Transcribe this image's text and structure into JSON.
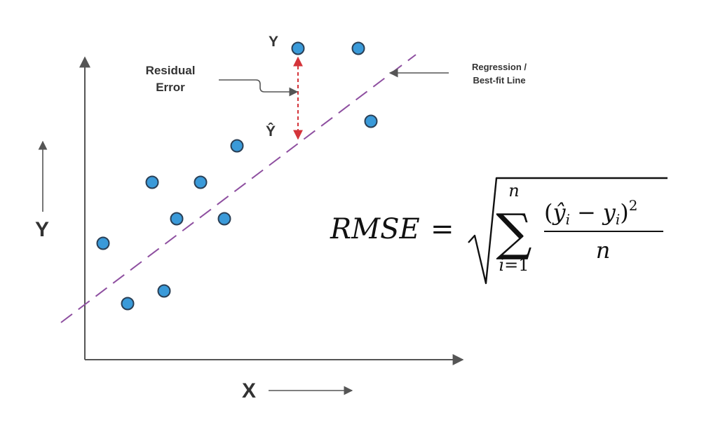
{
  "labels": {
    "y_axis": "Y",
    "x_axis": "X",
    "y_actual": "Y",
    "y_hat": "Ŷ",
    "residual_line1": "Residual",
    "residual_line2": "Error",
    "regression_line1": "Regression /",
    "regression_line2": "Best-fit Line"
  },
  "formula": {
    "lhs": "RMSE",
    "equals": "=",
    "sigma": "∑",
    "upper_limit": "n",
    "lower_index": "i",
    "lower_eq": "=1",
    "numerator_open": "(",
    "numerator_yhat": "ŷ",
    "numerator_sub1": "i",
    "minus": "−",
    "numerator_y": "y",
    "numerator_sub2": "i",
    "numerator_close": ")",
    "exponent": "2",
    "denominator": "n"
  },
  "colors": {
    "point_fill": "#3a9ad9",
    "point_stroke": "#2a3f55",
    "regression_line": "#8e4fa0",
    "residual_arrow": "#d4343a",
    "axis": "#555555",
    "text": "#333333"
  },
  "point_count": 13
}
